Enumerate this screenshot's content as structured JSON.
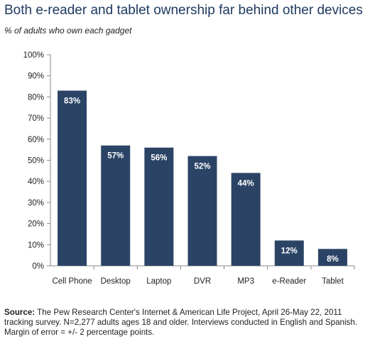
{
  "header": {
    "title": "Both e-reader and tablet ownership far behind other devices",
    "subtitle": "% of adults who own each gadget"
  },
  "footer": {
    "source_label": "Source:",
    "source_text": " The Pew Research Center's Internet & American Life Project, April 26-May 22, 2011 tracking survey. N=2,277 adults ages 18 and older. Interviews conducted in English and Spanish. Margin of error = +/- 2 percentage points."
  },
  "colors": {
    "bar": "#2b4466",
    "axis": "#888888",
    "bar_label": "#ffffff"
  },
  "chart_data": {
    "type": "bar",
    "title": "Both e-reader and tablet ownership far behind other devices",
    "subtitle": "% of adults who own each gadget",
    "categories": [
      "Cell Phone",
      "Desktop",
      "Laptop",
      "DVR",
      "MP3",
      "e-Reader",
      "Tablet"
    ],
    "values": [
      83,
      57,
      56,
      52,
      44,
      12,
      8
    ],
    "value_labels": [
      "83%",
      "57%",
      "56%",
      "52%",
      "44%",
      "12%",
      "8%"
    ],
    "yticks": [
      "0%",
      "10%",
      "20%",
      "30%",
      "40%",
      "50%",
      "60%",
      "70%",
      "80%",
      "90%",
      "100%"
    ],
    "ylim": [
      0,
      100
    ],
    "xlabel": "",
    "ylabel": "",
    "grid": false,
    "legend": "none"
  }
}
